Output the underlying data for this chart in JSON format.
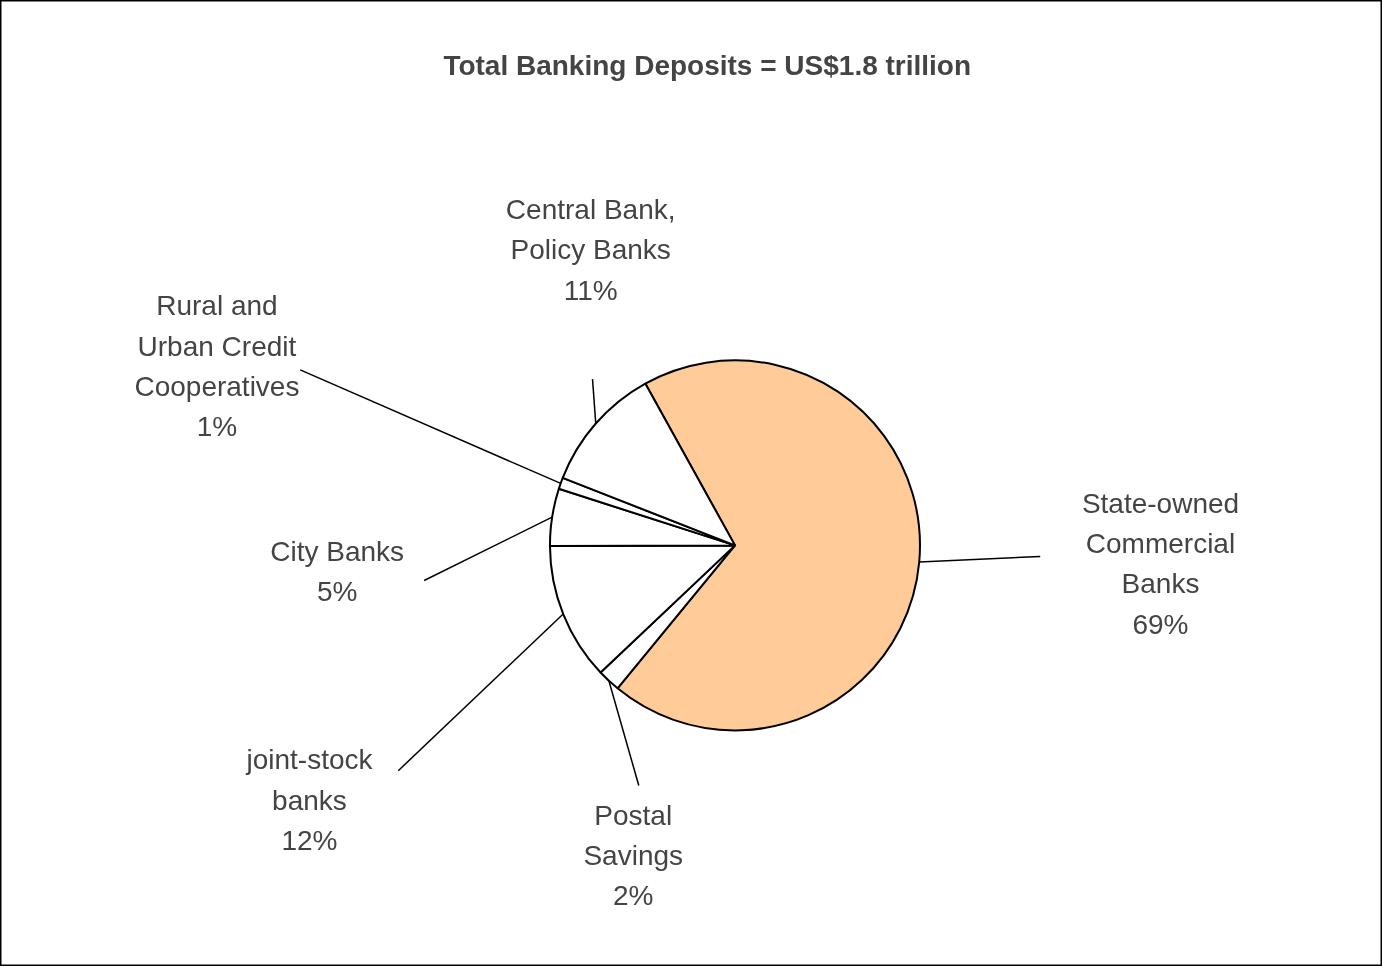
{
  "chart_data": {
    "type": "pie",
    "title": "Total Banking Deposits = US$1.8 trillion",
    "categories": [
      "State-owned Commercial Banks",
      "Postal Savings",
      "joint-stock banks",
      "City Banks",
      "Rural and Urban Credit Cooperatives",
      "Central Bank, Policy Banks"
    ],
    "values": [
      69,
      2,
      12,
      5,
      1,
      11
    ],
    "colors": [
      "#ffcc99",
      "#ffffff",
      "#ffffff",
      "#ffffff",
      "#ffffff",
      "#ffffff"
    ],
    "value_labels": [
      "69%",
      "2%",
      "12%",
      "5%",
      "1%",
      "11%"
    ]
  }
}
